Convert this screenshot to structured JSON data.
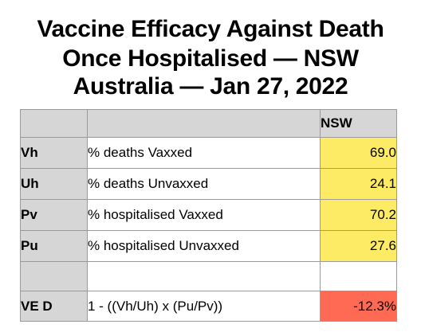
{
  "title": {
    "line1": "Vaccine Efficacy Against Death",
    "line2": "Once Hospitalised — NSW",
    "line3": "Australia — Jan 27, 2022"
  },
  "table": {
    "column_header": "NSW",
    "rows": [
      {
        "key": "Vh",
        "desc": "% deaths Vaxxed",
        "value": "69.0"
      },
      {
        "key": "Uh",
        "desc": "% deaths Unvaxxed",
        "value": "24.1"
      },
      {
        "key": "Pv",
        "desc": "% hospitalised Vaxxed",
        "value": "70.2"
      },
      {
        "key": "Pu",
        "desc": "% hospitalised Unvaxxed",
        "value": "27.6"
      }
    ],
    "result": {
      "key": "VE D",
      "desc": "1 - ((Vh/Uh) x (Pu/Pv))",
      "value": "-12.3%"
    }
  },
  "colors": {
    "value_highlight": "#fdeb66",
    "result_highlight": "#ff6a55",
    "header_grey": "#d6d6d6"
  }
}
